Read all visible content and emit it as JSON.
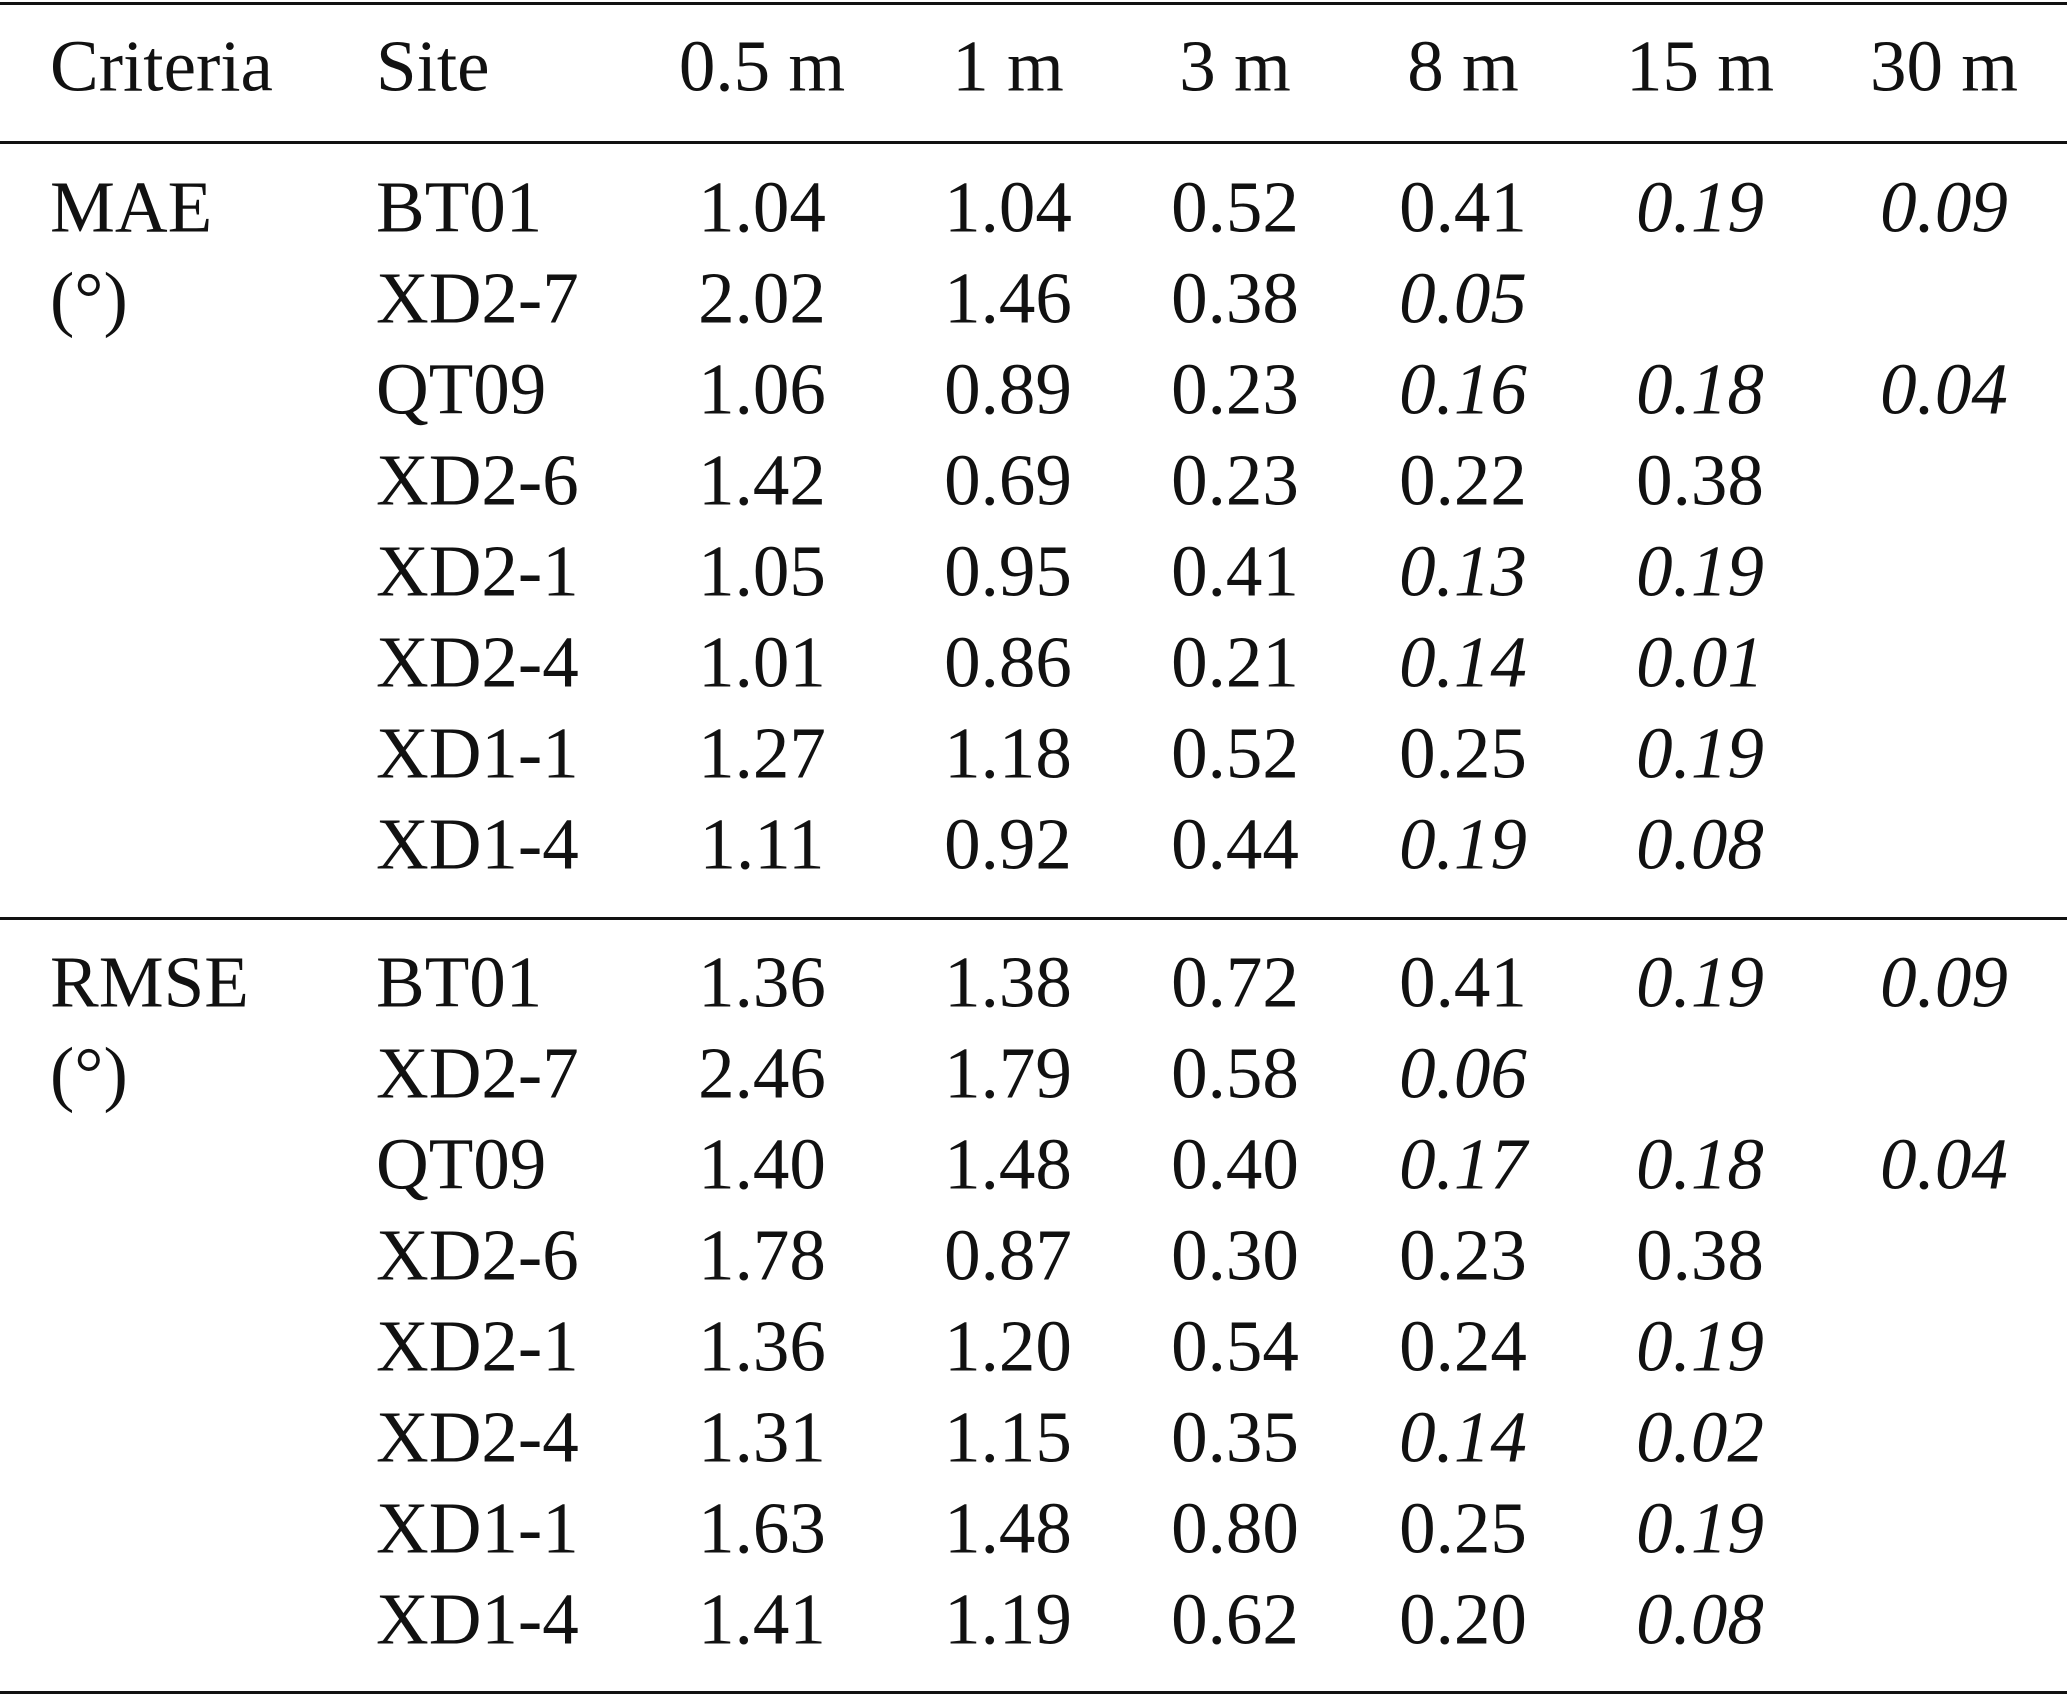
{
  "table": {
    "header": [
      "Criteria",
      "Site",
      "0.5 m",
      "1 m",
      "3 m",
      "8 m",
      "15 m",
      "30 m"
    ],
    "groups": [
      {
        "criteria": "MAE",
        "unit": "(°)",
        "rows": [
          {
            "site": "BT01",
            "values": [
              "1.04",
              "1.04",
              "0.52",
              "0.41",
              "0.19",
              "0.09"
            ],
            "italic": [
              false,
              false,
              false,
              false,
              true,
              true
            ]
          },
          {
            "site": "XD2-7",
            "values": [
              "2.02",
              "1.46",
              "0.38",
              "0.05",
              null,
              null
            ],
            "italic": [
              false,
              false,
              false,
              true,
              false,
              false
            ]
          },
          {
            "site": "QT09",
            "values": [
              "1.06",
              "0.89",
              "0.23",
              "0.16",
              "0.18",
              "0.04"
            ],
            "italic": [
              false,
              false,
              false,
              true,
              true,
              true
            ]
          },
          {
            "site": "XD2-6",
            "values": [
              "1.42",
              "0.69",
              "0.23",
              "0.22",
              "0.38",
              null
            ],
            "italic": [
              false,
              false,
              false,
              false,
              false,
              false
            ]
          },
          {
            "site": "XD2-1",
            "values": [
              "1.05",
              "0.95",
              "0.41",
              "0.13",
              "0.19",
              null
            ],
            "italic": [
              false,
              false,
              false,
              true,
              true,
              false
            ]
          },
          {
            "site": "XD2-4",
            "values": [
              "1.01",
              "0.86",
              "0.21",
              "0.14",
              "0.01",
              null
            ],
            "italic": [
              false,
              false,
              false,
              true,
              true,
              false
            ]
          },
          {
            "site": "XD1-1",
            "values": [
              "1.27",
              "1.18",
              "0.52",
              "0.25",
              "0.19",
              null
            ],
            "italic": [
              false,
              false,
              false,
              false,
              true,
              false
            ]
          },
          {
            "site": "XD1-4",
            "values": [
              "1.11",
              "0.92",
              "0.44",
              "0.19",
              "0.08",
              null
            ],
            "italic": [
              false,
              false,
              false,
              true,
              true,
              false
            ]
          }
        ]
      },
      {
        "criteria": "RMSE",
        "unit": "(°)",
        "rows": [
          {
            "site": "BT01",
            "values": [
              "1.36",
              "1.38",
              "0.72",
              "0.41",
              "0.19",
              "0.09"
            ],
            "italic": [
              false,
              false,
              false,
              false,
              true,
              true
            ]
          },
          {
            "site": "XD2-7",
            "values": [
              "2.46",
              "1.79",
              "0.58",
              "0.06",
              null,
              null
            ],
            "italic": [
              false,
              false,
              false,
              true,
              false,
              false
            ]
          },
          {
            "site": "QT09",
            "values": [
              "1.40",
              "1.48",
              "0.40",
              "0.17",
              "0.18",
              "0.04"
            ],
            "italic": [
              false,
              false,
              false,
              true,
              true,
              true
            ]
          },
          {
            "site": "XD2-6",
            "values": [
              "1.78",
              "0.87",
              "0.30",
              "0.23",
              "0.38",
              null
            ],
            "italic": [
              false,
              false,
              false,
              false,
              false,
              false
            ]
          },
          {
            "site": "XD2-1",
            "values": [
              "1.36",
              "1.20",
              "0.54",
              "0.24",
              "0.19",
              null
            ],
            "italic": [
              false,
              false,
              false,
              false,
              true,
              false
            ]
          },
          {
            "site": "XD2-4",
            "values": [
              "1.31",
              "1.15",
              "0.35",
              "0.14",
              "0.02",
              null
            ],
            "italic": [
              false,
              false,
              false,
              true,
              true,
              false
            ]
          },
          {
            "site": "XD1-1",
            "values": [
              "1.63",
              "1.48",
              "0.80",
              "0.25",
              "0.19",
              null
            ],
            "italic": [
              false,
              false,
              false,
              false,
              true,
              false
            ]
          },
          {
            "site": "XD1-4",
            "values": [
              "1.41",
              "1.19",
              "0.62",
              "0.20",
              "0.08",
              null
            ],
            "italic": [
              false,
              false,
              false,
              false,
              true,
              false
            ]
          }
        ]
      }
    ]
  }
}
